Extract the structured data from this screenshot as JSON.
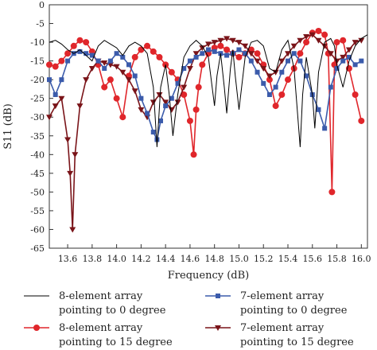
{
  "chart_data": {
    "type": "line",
    "title": "",
    "xlabel": "Frequency (dB)",
    "ylabel": "S11 (dB)",
    "xlim": [
      13.45,
      16.05
    ],
    "ylim": [
      -65,
      0
    ],
    "xticks": [
      "13.6",
      "13.8",
      "14.0",
      "14.2",
      "14.4",
      "14.6",
      "14.8",
      "15.0",
      "15.2",
      "15.4",
      "15.6",
      "15.8",
      "16.0"
    ],
    "yticks": [
      "0",
      "-5",
      "-10",
      "-15",
      "-20",
      "-25",
      "-30",
      "-35",
      "-40",
      "-45",
      "-50",
      "-55",
      "-60",
      "-65"
    ],
    "grid": false,
    "legend_position": "bottom",
    "series": [
      {
        "name": "8-element array pointing to 0 degree",
        "color": "#000000",
        "marker": "none",
        "x": [
          13.45,
          13.5,
          13.55,
          13.6,
          13.65,
          13.7,
          13.75,
          13.8,
          13.85,
          13.9,
          13.95,
          14.0,
          14.05,
          14.1,
          14.15,
          14.2,
          14.25,
          14.3,
          14.33,
          14.36,
          14.4,
          14.43,
          14.46,
          14.5,
          14.55,
          14.6,
          14.65,
          14.7,
          14.75,
          14.8,
          14.82,
          14.85,
          14.88,
          14.9,
          14.93,
          14.95,
          14.97,
          15.0,
          15.05,
          15.1,
          15.15,
          15.2,
          15.25,
          15.3,
          15.35,
          15.4,
          15.45,
          15.5,
          15.52,
          15.55,
          15.6,
          15.62,
          15.65,
          15.7,
          15.75,
          15.78,
          15.8,
          15.85,
          15.9,
          15.95,
          16.0,
          16.05
        ],
        "y": [
          -10,
          -9.5,
          -10.5,
          -12,
          -13,
          -12,
          -13.5,
          -15,
          -11,
          -9.5,
          -10.5,
          -11.5,
          -13.5,
          -11,
          -10,
          -11,
          -13,
          -22,
          -38,
          -22,
          -16,
          -24,
          -35,
          -24,
          -14,
          -11,
          -9.5,
          -11,
          -14,
          -27,
          -19,
          -13,
          -22,
          -29,
          -17,
          -12,
          -19,
          -28,
          -14,
          -10,
          -9.5,
          -11,
          -17,
          -18,
          -12,
          -9.5,
          -17,
          -38,
          -24,
          -14,
          -24,
          -33,
          -18,
          -10,
          -9,
          -11,
          -16,
          -22,
          -15,
          -11,
          -9,
          -8
        ]
      },
      {
        "name": "7-element array pointing to 0 degree",
        "color": "#3b5bab",
        "marker": "square",
        "x": [
          13.45,
          13.5,
          13.55,
          13.6,
          13.65,
          13.7,
          13.75,
          13.8,
          13.85,
          13.9,
          13.95,
          14.0,
          14.05,
          14.1,
          14.15,
          14.2,
          14.25,
          14.3,
          14.33,
          14.36,
          14.4,
          14.45,
          14.5,
          14.55,
          14.6,
          14.65,
          14.7,
          14.75,
          14.8,
          14.85,
          14.9,
          14.95,
          15.0,
          15.05,
          15.1,
          15.15,
          15.2,
          15.25,
          15.3,
          15.35,
          15.4,
          15.45,
          15.5,
          15.55,
          15.6,
          15.65,
          15.7,
          15.75,
          15.8,
          15.85,
          15.9,
          15.95,
          16.0
        ],
        "y": [
          -20,
          -24,
          -20,
          -15,
          -13,
          -12.5,
          -13,
          -13.5,
          -15,
          -17,
          -15,
          -13,
          -14,
          -16,
          -19,
          -25,
          -29,
          -34,
          -36,
          -31,
          -27,
          -25,
          -21,
          -17,
          -15,
          -14,
          -13,
          -12,
          -12.5,
          -13,
          -13.5,
          -13,
          -12,
          -13,
          -15,
          -18,
          -21,
          -24,
          -22,
          -18,
          -15,
          -13,
          -15,
          -19,
          -24,
          -28,
          -33,
          -22,
          -17,
          -15,
          -14,
          -16,
          -15
        ]
      },
      {
        "name": "8-element array pointing to 15 degree",
        "color": "#e0262b",
        "marker": "circle",
        "x": [
          13.45,
          13.5,
          13.55,
          13.6,
          13.65,
          13.7,
          13.75,
          13.8,
          13.85,
          13.9,
          13.95,
          14.0,
          14.05,
          14.1,
          14.15,
          14.2,
          14.25,
          14.3,
          14.35,
          14.4,
          14.45,
          14.5,
          14.55,
          14.6,
          14.63,
          14.65,
          14.67,
          14.7,
          14.75,
          14.8,
          14.85,
          14.9,
          14.95,
          15.0,
          15.05,
          15.1,
          15.15,
          15.2,
          15.25,
          15.3,
          15.35,
          15.4,
          15.45,
          15.5,
          15.55,
          15.6,
          15.65,
          15.7,
          15.73,
          15.76,
          15.78,
          15.8,
          15.85,
          15.9,
          15.95,
          16.0
        ],
        "y": [
          -16,
          -16.5,
          -15,
          -13,
          -11,
          -9.5,
          -10,
          -12.5,
          -16,
          -22,
          -20,
          -25,
          -30,
          -19,
          -14,
          -12,
          -11,
          -12.5,
          -14,
          -16,
          -18,
          -20,
          -24,
          -31,
          -40,
          -28,
          -22,
          -16,
          -13,
          -11.5,
          -11,
          -12,
          -13,
          -14,
          -13,
          -12,
          -13,
          -16,
          -20,
          -27,
          -24,
          -20,
          -17,
          -13,
          -10,
          -7.5,
          -7,
          -8,
          -13,
          -50,
          -16,
          -10,
          -9.5,
          -17,
          -24,
          -31
        ]
      },
      {
        "name": "7-element array pointing to 15 degree",
        "color": "#7a1419",
        "marker": "triangle-down",
        "x": [
          13.45,
          13.5,
          13.55,
          13.6,
          13.62,
          13.64,
          13.66,
          13.7,
          13.75,
          13.8,
          13.85,
          13.9,
          13.95,
          14.0,
          14.05,
          14.1,
          14.15,
          14.2,
          14.25,
          14.3,
          14.35,
          14.4,
          14.45,
          14.5,
          14.55,
          14.6,
          14.65,
          14.7,
          14.75,
          14.8,
          14.85,
          14.9,
          14.95,
          15.0,
          15.05,
          15.1,
          15.15,
          15.2,
          15.25,
          15.3,
          15.35,
          15.4,
          15.45,
          15.5,
          15.55,
          15.6,
          15.65,
          15.7,
          15.75,
          15.8,
          15.85,
          15.9,
          15.95,
          16.0
        ],
        "y": [
          -30,
          -27,
          -25,
          -36,
          -45,
          -60,
          -40,
          -27,
          -20,
          -17,
          -15,
          -15.5,
          -16,
          -16.5,
          -18,
          -20,
          -23,
          -28,
          -30,
          -26,
          -24,
          -26,
          -28,
          -26,
          -22,
          -17,
          -13,
          -11.5,
          -10.5,
          -10,
          -9.5,
          -9,
          -9.5,
          -10,
          -11,
          -13,
          -15,
          -17,
          -19,
          -18,
          -15,
          -13,
          -11,
          -9.5,
          -8.5,
          -8,
          -9.5,
          -11,
          -13,
          -15,
          -14,
          -12,
          -10,
          -9.5
        ]
      }
    ]
  }
}
